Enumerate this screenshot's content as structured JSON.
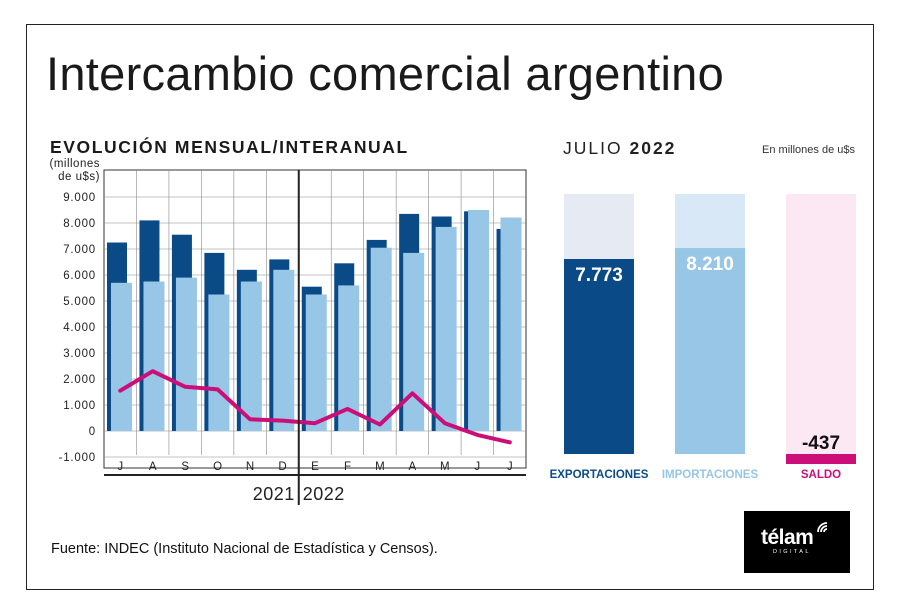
{
  "title": "Intercambio comercial argentino",
  "left_chart": {
    "subtitle": "EVOLUCIÓN MENSUAL/INTERANUAL",
    "unit": [
      "(millones",
      "de u$s)"
    ],
    "year_label_left": "2021",
    "year_label_right": "2022"
  },
  "right_chart": {
    "period_light": "JULIO",
    "period_bold": "2022",
    "unit": "En millones de u$s"
  },
  "source": "Fuente: INDEC (Instituto Nacional de Estadística y Censos).",
  "logo": {
    "name": "télam",
    "tag": "DIGITAL",
    "icon": "broadcast-wave-icon"
  },
  "colors": {
    "exports": "#0a4b87",
    "imports": "#97c6e6",
    "balance": "#cc0e79",
    "exports_bg": "#e6eaf3",
    "imports_bg": "#d8e8f6",
    "balance_bg": "#fbe8f2"
  },
  "chart_data": [
    {
      "type": "bar",
      "categories": [
        "J",
        "A",
        "S",
        "O",
        "N",
        "D",
        "E",
        "F",
        "M",
        "A",
        "M",
        "J",
        "J"
      ],
      "y_ticks": [
        "9.000",
        "8.000",
        "7.000",
        "6.000",
        "5.000",
        "4.000",
        "3.000",
        "2.000",
        "1.000",
        "0",
        "-1.000"
      ],
      "ylim": [
        -1000,
        10000
      ],
      "grid": true,
      "year_divider_after_index": 5,
      "series": [
        {
          "values": [
            7250,
            8100,
            7550,
            6850,
            6200,
            6600,
            5550,
            6450,
            7350,
            8350,
            8250,
            8450,
            7773
          ]
        },
        {
          "values": [
            5700,
            5750,
            5900,
            5250,
            5750,
            6200,
            5250,
            5600,
            7050,
            6850,
            7850,
            8500,
            8210
          ]
        },
        {
          "type": "line",
          "values": [
            1550,
            2300,
            1700,
            1600,
            450,
            400,
            300,
            850,
            250,
            1450,
            300,
            -150,
            -437
          ]
        }
      ]
    },
    {
      "type": "bar",
      "categories": [
        "EXPORTACIONES",
        "IMPORTACIONES",
        "SALDO"
      ],
      "values": [
        7773,
        8210,
        -437
      ],
      "value_labels": [
        "7.773",
        "8.210",
        "-437"
      ],
      "ylim": [
        -500,
        9100
      ]
    }
  ]
}
